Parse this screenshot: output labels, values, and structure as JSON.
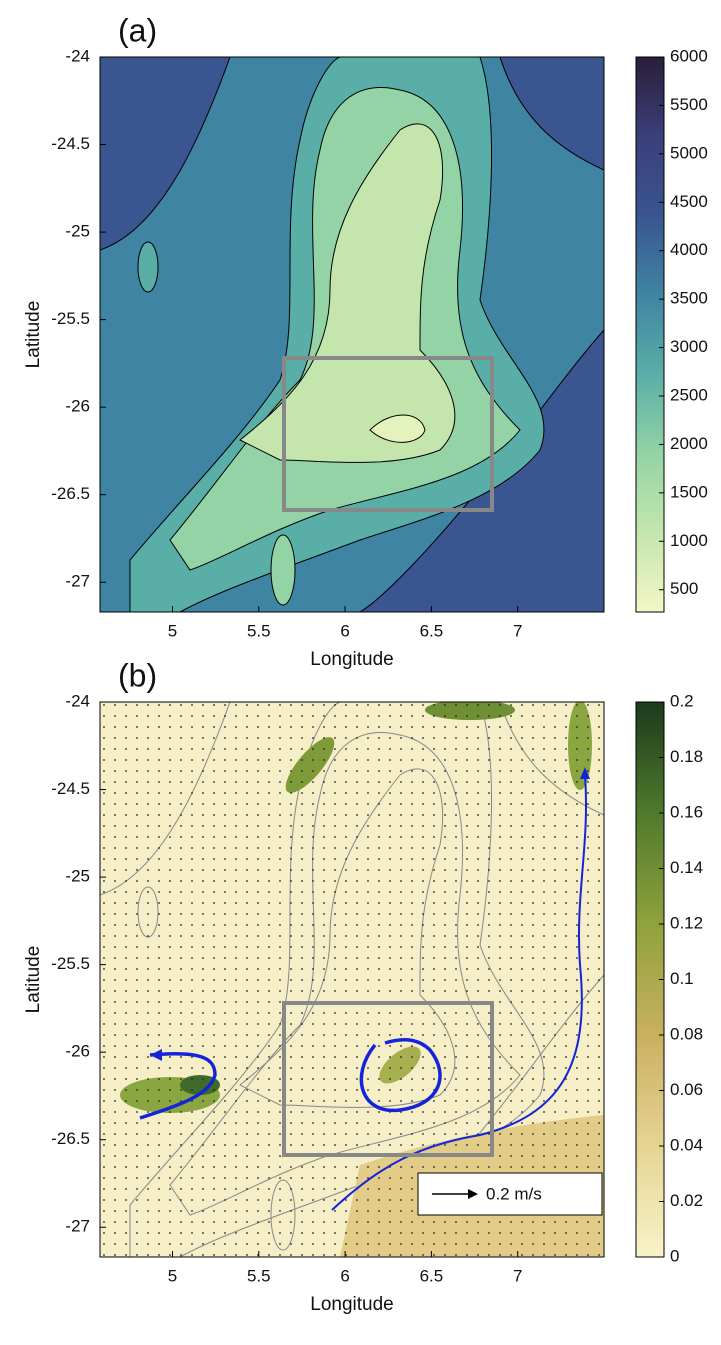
{
  "chart_data": [
    {
      "type": "contour",
      "title": "(a)",
      "xlabel": "Longitude",
      "ylabel": "Latitude",
      "xlim": [
        4.58,
        7.5
      ],
      "ylim": [
        -27.17,
        -24
      ],
      "xticks": [
        5,
        5.5,
        6,
        6.5,
        7
      ],
      "yticks": [
        -27,
        -26.5,
        -26,
        -25.5,
        -25,
        -24.5,
        -24
      ],
      "colorbar": {
        "lim": [
          270,
          6000
        ],
        "ticks": [
          500,
          1000,
          1500,
          2000,
          2500,
          3000,
          3500,
          4000,
          4500,
          5000,
          5500,
          6000
        ],
        "colors": [
          "#f4f6c6",
          "#c4e6ad",
          "#93d3a6",
          "#5aaea8",
          "#3f84a2",
          "#3a5590",
          "#3b3f7a",
          "#2a1e3a"
        ]
      }
    },
    {
      "type": "contour",
      "title": "(b)",
      "xlabel": "Longitude",
      "ylabel": "Latitude",
      "xlim": [
        4.58,
        7.5
      ],
      "ylim": [
        -27.17,
        -24
      ],
      "xticks": [
        5,
        5.5,
        6,
        6.5,
        7
      ],
      "yticks": [
        -27,
        -26.5,
        -26,
        -25.5,
        -25,
        -24.5,
        -24
      ],
      "colorbar": {
        "lim": [
          0,
          0.2
        ],
        "ticks": [
          0,
          0.02,
          0.04,
          0.06,
          0.08,
          0.1,
          0.12,
          0.14,
          0.16,
          0.18,
          0.2
        ],
        "colors": [
          "#f8f3c8",
          "#e6d494",
          "#c9b060",
          "#8fa23c",
          "#4f7a2c",
          "#1c3a1c"
        ]
      },
      "annotation": "0.2 m/s"
    }
  ]
}
